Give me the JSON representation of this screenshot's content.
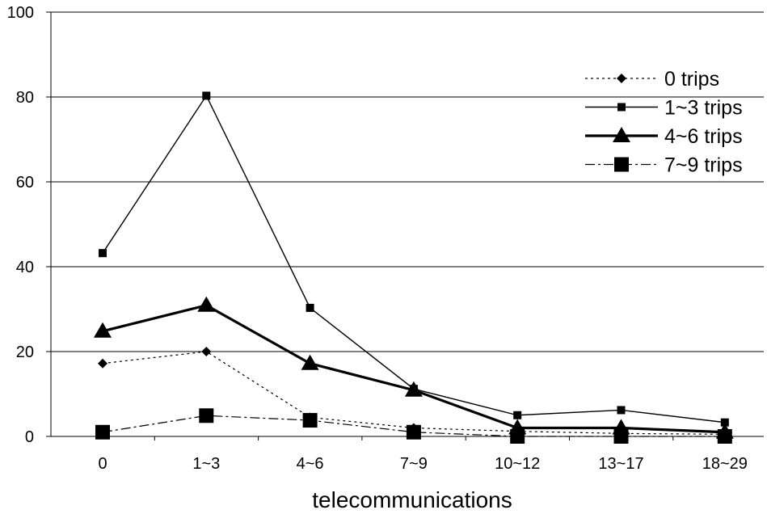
{
  "chart_data": {
    "type": "line",
    "title": "",
    "xlabel": "telecommunications",
    "ylabel": "",
    "ylim": [
      0,
      100
    ],
    "yticks": [
      0,
      20,
      40,
      60,
      80,
      100
    ],
    "categories": [
      "0",
      "1~3",
      "4~6",
      "7~9",
      "10~12",
      "13~17",
      "18~29"
    ],
    "grid": "horizontal",
    "legend_position": "top-right",
    "series": [
      {
        "name": "0 trips",
        "values": [
          17.2,
          20,
          4.5,
          2.0,
          1.2,
          0.7,
          0.5
        ],
        "line_style": "dotted",
        "marker": "diamond",
        "color": "#000000"
      },
      {
        "name": "1~3 trips",
        "values": [
          43.2,
          80.3,
          30.3,
          11.2,
          5.0,
          6.2,
          3.3
        ],
        "line_style": "solid",
        "marker": "small-square",
        "color": "#000000"
      },
      {
        "name": "4~6 trips",
        "values": [
          24.8,
          30.9,
          17.2,
          10.9,
          2.0,
          2.0,
          1.0
        ],
        "line_style": "thick",
        "marker": "triangle",
        "color": "#000000"
      },
      {
        "name": "7~9 trips",
        "values": [
          1.0,
          4.9,
          3.8,
          1.0,
          0,
          0,
          0
        ],
        "line_style": "dash-dot",
        "marker": "large-square",
        "color": "#000000"
      }
    ]
  }
}
